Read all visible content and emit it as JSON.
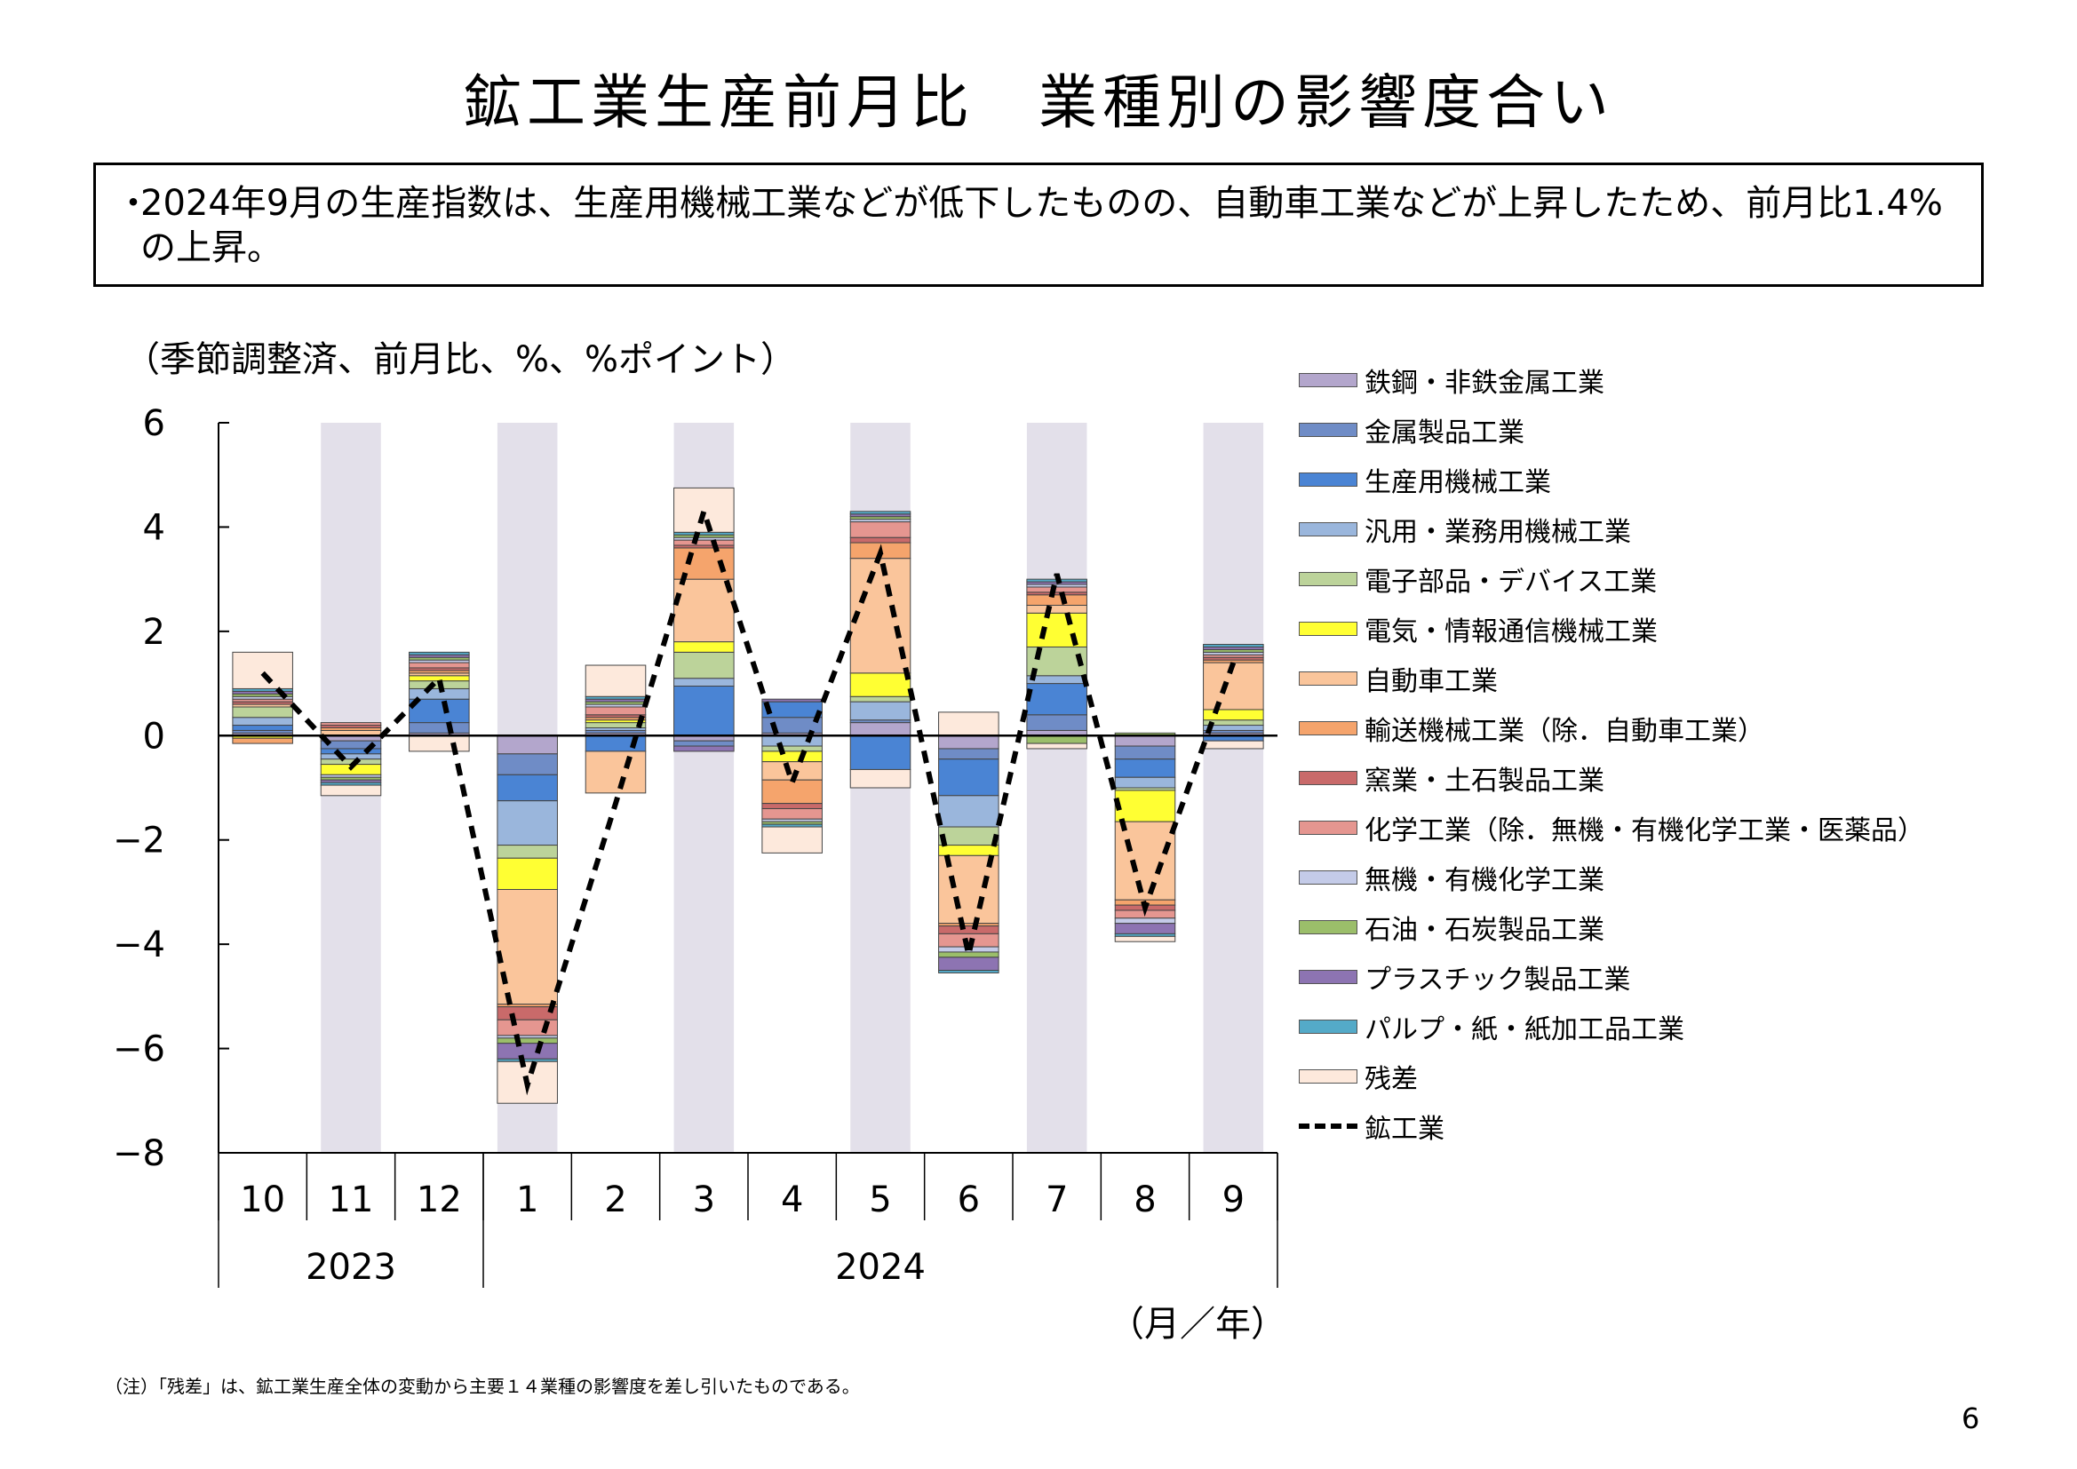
{
  "title": "鉱工業生産前月比　業種別の影響度合い",
  "summary": {
    "bullet": "・",
    "text": "2024年9月の生産指数は、生産用機械工業などが低下したものの、自動車工業などが上昇したため、前月比1.4%の上昇。"
  },
  "unit_label": "（季節調整済、前月比、%、%ポイント）",
  "axis_unit": "（月／年）",
  "note": "（注）「残差」は、鉱工業生産全体の変動から主要１４業種の影響度を差し引いたものである。",
  "page_number": "6",
  "colors": {
    "shade": "#e3e0ea",
    "axis": "#000000"
  },
  "chart_data": {
    "type": "bar",
    "stacked": true,
    "ylim": [
      -8,
      6
    ],
    "yticks": [
      6,
      4,
      2,
      0,
      -2,
      -4,
      -6,
      -8
    ],
    "ytick_labels": [
      "6",
      "4",
      "2",
      "0",
      "−2",
      "−4",
      "−6",
      "−8"
    ],
    "categories": [
      "10",
      "11",
      "12",
      "1",
      "2",
      "3",
      "4",
      "5",
      "6",
      "7",
      "8",
      "9"
    ],
    "years": [
      {
        "label": "2023",
        "from": 0,
        "to": 2
      },
      {
        "label": "2024",
        "from": 3,
        "to": 11
      }
    ],
    "shaded_categories": [
      1,
      3,
      5,
      7,
      9,
      11
    ],
    "series": [
      {
        "name": "鉄鋼・非鉄金属工業",
        "color": "#b3a6cc",
        "values": [
          0.05,
          -0.1,
          0.05,
          -0.35,
          0.05,
          -0.1,
          0.05,
          0.25,
          -0.25,
          0.1,
          -0.2,
          0.05
        ]
      },
      {
        "name": "金属製品工業",
        "color": "#6f8cc6",
        "values": [
          0.05,
          -0.15,
          0.2,
          -0.4,
          0.05,
          -0.1,
          0.3,
          0.05,
          -0.2,
          0.3,
          -0.25,
          0.05
        ]
      },
      {
        "name": "生産用機械工業",
        "color": "#4a84d4",
        "values": [
          0.1,
          -0.1,
          0.45,
          -0.5,
          -0.3,
          0.95,
          0.3,
          -0.65,
          -0.7,
          0.6,
          -0.35,
          -0.1
        ]
      },
      {
        "name": "汎用・業務用機械工業",
        "color": "#9ab6dc",
        "values": [
          0.15,
          -0.1,
          0.2,
          -0.85,
          0.05,
          0.15,
          -0.2,
          0.35,
          -0.6,
          0.15,
          -0.2,
          0.1
        ]
      },
      {
        "name": "電子部品・デバイス工業",
        "color": "#bcd39a",
        "values": [
          0.2,
          -0.1,
          0.15,
          -0.25,
          0.1,
          0.5,
          -0.1,
          0.1,
          -0.35,
          0.55,
          -0.05,
          0.1
        ]
      },
      {
        "name": "電気・情報通信機械工業",
        "color": "#ffff33",
        "values": [
          -0.05,
          -0.2,
          0.1,
          -0.6,
          0.05,
          0.2,
          -0.2,
          0.45,
          -0.2,
          0.65,
          -0.6,
          0.2
        ]
      },
      {
        "name": "自動車工業",
        "color": "#fac59b",
        "values": [
          0.05,
          0.1,
          0.05,
          -2.2,
          -0.8,
          1.2,
          -0.35,
          2.2,
          -1.3,
          0.15,
          -1.5,
          0.9
        ]
      },
      {
        "name": "輸送機械工業（除．自動車工業）",
        "color": "#f5a46c",
        "values": [
          -0.1,
          0.05,
          0.05,
          -0.05,
          0.05,
          0.6,
          -0.45,
          0.3,
          -0.05,
          0.2,
          -0.1,
          0.05
        ]
      },
      {
        "name": "窯業・土石製品工業",
        "color": "#c96a6a",
        "values": [
          0.05,
          0.05,
          0.05,
          -0.25,
          0.05,
          0.05,
          -0.1,
          0.1,
          -0.15,
          0.05,
          -0.1,
          0.05
        ]
      },
      {
        "name": "化学工業（除．無機・有機化学工業・医薬品）",
        "color": "#e59690",
        "values": [
          0.05,
          0.05,
          0.1,
          -0.3,
          0.15,
          0.1,
          -0.2,
          0.3,
          -0.25,
          0.1,
          -0.15,
          0.05
        ]
      },
      {
        "name": "無機・有機化学工業",
        "color": "#c4cbe8",
        "values": [
          0.05,
          -0.05,
          0.05,
          -0.05,
          0.05,
          0.05,
          -0.05,
          0.05,
          -0.1,
          0.05,
          -0.1,
          0.05
        ]
      },
      {
        "name": "石油・石炭製品工業",
        "color": "#9bbe6a",
        "values": [
          0.05,
          -0.05,
          0.05,
          -0.1,
          0.05,
          0.05,
          -0.05,
          0.05,
          -0.1,
          -0.15,
          0.05,
          0.05
        ]
      },
      {
        "name": "プラスチック製品工業",
        "color": "#8d74b2",
        "values": [
          0.05,
          -0.05,
          0.05,
          -0.3,
          0.05,
          -0.1,
          0.05,
          0.05,
          -0.25,
          0.05,
          -0.2,
          0.05
        ]
      },
      {
        "name": "パルプ・紙・紙加工品工業",
        "color": "#54aac8",
        "values": [
          0.05,
          -0.05,
          0.05,
          -0.05,
          0.05,
          0.05,
          -0.05,
          0.05,
          -0.05,
          0.05,
          -0.05,
          0.05
        ]
      },
      {
        "name": "残差",
        "color": "#fde9dc",
        "values": [
          0.7,
          -0.2,
          -0.3,
          -0.8,
          0.6,
          0.85,
          -0.5,
          -0.35,
          0.45,
          -0.1,
          -0.1,
          -0.15
        ]
      }
    ],
    "line": {
      "name": "鉱工業",
      "color": "#000000",
      "values": [
        1.2,
        -0.6,
        1.1,
        -6.7,
        -1.3,
        4.3,
        -0.9,
        3.5,
        -4.2,
        3.1,
        -3.3,
        1.4
      ]
    }
  }
}
